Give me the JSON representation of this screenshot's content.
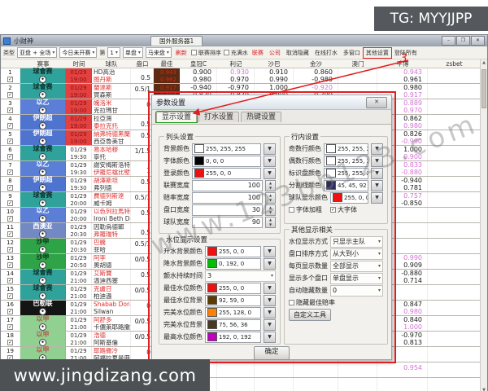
{
  "watermarks": {
    "tg_badge": "TG: MYYJJPP",
    "bottom_site": "www.jingdizang.com",
    "diagonal": "www.123bb123.com"
  },
  "window": {
    "title": "小财神",
    "server_tab": "国外服务器1",
    "min": "–",
    "max": "❐",
    "close": "✕"
  },
  "toolbar": {
    "items": [
      {
        "t": "label",
        "text": "类型"
      },
      {
        "t": "dd",
        "text": "亚盘 + 全场"
      },
      {
        "t": "dd",
        "text": "今日未开赛"
      },
      {
        "t": "label",
        "text": "第"
      },
      {
        "t": "dd",
        "text": "1"
      },
      {
        "t": "dd",
        "text": "单盘"
      },
      {
        "t": "dd",
        "text": "马来盘"
      },
      {
        "t": "red",
        "text": "刷新"
      },
      {
        "t": "check",
        "text": "联赛排序",
        "checked": false
      },
      {
        "t": "check",
        "text": "充满水",
        "checked": false
      },
      {
        "t": "red",
        "text": "联赛"
      },
      {
        "t": "red",
        "text": "公司"
      },
      {
        "t": "plain",
        "text": "取消隐藏"
      },
      {
        "t": "plain",
        "text": "在线打水"
      },
      {
        "t": "plain",
        "text": "多窗口"
      },
      {
        "t": "plain",
        "text": "其他设置",
        "hl": true
      },
      {
        "t": "plain",
        "text": "登陆所有"
      }
    ],
    "step_annotation": "3"
  },
  "table": {
    "headers": [
      "赛事",
      "时间",
      "球队",
      "盘口",
      "最佳",
      "皇冠C",
      "利记",
      "沙巴",
      "金沙",
      "澳门",
      "平博",
      "zsbet"
    ],
    "pink_prefix": "*",
    "rows": [
      {
        "n": "1",
        "lg": "球會赛",
        "d": "01/29",
        "tm": "19:00",
        "live": true,
        "t1": "HD高治",
        "t2": "图丹斯",
        "fav": 2,
        "h": "0.5",
        "best": [
          "0.943",
          "0.962"
        ],
        "hg": [
          "0.900",
          "0.980"
        ],
        "lj": [
          "*0.930",
          "0.970"
        ],
        "sb": [
          "0.910",
          "0.990"
        ],
        "js": [
          "0.860",
          "-0.980"
        ],
        "pb": [
          "*0.943",
          "0.961"
        ]
      },
      {
        "n": "2",
        "lg": "球會赛",
        "d": "01/29",
        "tm": "19:00",
        "live": true,
        "t1": "蘭達斯",
        "t2": "賀森斯",
        "fav": 1,
        "h": "0.5/1",
        "best": [
          "0.917",
          "0.817"
        ],
        "hg": [
          "-0.940",
          "0.820"
        ],
        "lj": [
          "-0.970",
          "0.870"
        ],
        "sb": [
          "1.000",
          "0.900"
        ],
        "js": [
          "*-0.920",
          "0.790"
        ],
        "pb": [
          "0.980",
          "*0.917"
        ]
      },
      {
        "n": "3",
        "lg": "以乙",
        "d": "01/29",
        "tm": "19:00",
        "live": true,
        "t1": "魄洛米",
        "t2": "克拉瑪甘",
        "fav": 1,
        "h": "0",
        "best": [
          "0.920",
          ""
        ],
        "pb": [
          "*0.889",
          "*0.970"
        ]
      },
      {
        "n": "4",
        "lg": "伊朗超",
        "d": "01/29",
        "tm": "19:00",
        "live": true,
        "t1": "拉亞灣",
        "t2": "泰拉克托",
        "fav": 2,
        "h": "0.5",
        "pb": [
          "0.862",
          "*0.980"
        ]
      },
      {
        "n": "5",
        "lg": "伊朗超",
        "d": "01/29",
        "tm": "19:00",
        "live": true,
        "t1": "納弗特德黑蘭",
        "t2": "西亞魯美甘",
        "fav": 1,
        "h": "0.5",
        "pb": [
          "0.826",
          "*-0.990"
        ]
      },
      {
        "n": "6",
        "lg": "球會赛",
        "d": "01/29",
        "tm": "19:30",
        "t1": "易本哈穆",
        "t2": "寧托",
        "fav": 1,
        "h": "1/1.5",
        "pb": [
          "1.000",
          "*0.900"
        ]
      },
      {
        "n": "7",
        "lg": "以乙",
        "d": "01/29",
        "tm": "19:30",
        "t1": "謝安梅斯洛特",
        "t2": "伊羅尼檔比壁",
        "fav": 2,
        "h": "1",
        "pb": [
          "*0.833",
          "*-0.880"
        ]
      },
      {
        "n": "8",
        "lg": "伊朗超",
        "d": "01/29",
        "tm": "19:30",
        "t1": "胡澤斯坦",
        "t2": "弗列德",
        "fav": 1,
        "h": "0.5",
        "pb": [
          "-0.940",
          "0.781"
        ]
      },
      {
        "n": "9",
        "lg": "球會赛",
        "d": "01/29",
        "tm": "20:00",
        "t1": "費德列斯達",
        "t2": "威卡姆",
        "fav": 1,
        "h": "0.5/1",
        "pb": [
          "*0.757",
          "-0.850"
        ]
      },
      {
        "n": "10",
        "lg": "以乙",
        "d": "01/29",
        "tm": "20:00",
        "t1": "以色列拉馬特",
        "t2": "Ironi Beth D-",
        "fav": 1,
        "h": "0.5"
      },
      {
        "n": "11",
        "lg": "西澳亚",
        "d": "01/29",
        "tm": "20:30",
        "t1": "因勒烏德鄲",
        "t2": "弗羅瑞特",
        "fav": 2,
        "h": "0.5"
      },
      {
        "n": "12",
        "lg": "沙甲",
        "d": "01/29",
        "tm": "20:30",
        "t1": "巴騰",
        "t2": "菲哈",
        "fav": 1,
        "h": "0.5/1"
      },
      {
        "n": "13",
        "lg": "沙甲",
        "d": "01/29",
        "tm": "20:50",
        "t1": "阿李",
        "t2": "奧胡德",
        "fav": 1,
        "h": "0/0.5",
        "pb": [
          "*0.990",
          "0.909"
        ]
      },
      {
        "n": "14",
        "lg": "球會赛",
        "d": "01/29",
        "tm": "21:00",
        "t1": "艾斯寶",
        "t2": "溫迪西塞",
        "fav": 1,
        "h": "0.5",
        "pb": [
          "-0.880",
          "0.714"
        ]
      },
      {
        "n": "15",
        "lg": "球會赛",
        "d": "01/29",
        "tm": "21:00",
        "t1": "克盧日",
        "t2": "柏迪遜",
        "fav": 1,
        "h": "0/0.5"
      },
      {
        "n": "16",
        "lg": "巴勒联",
        "d": "01/29",
        "tm": "21:00",
        "t1": "Shabab Dora",
        "t2": "Silwan",
        "fav": 1,
        "h": "0",
        "pb": [
          "0.847",
          "*0.980"
        ]
      },
      {
        "n": "17",
        "lg": "以甲",
        "d": "01/29",
        "tm": "21:00",
        "t1": "阿舒多",
        "t2": "卡儂萊耶路撒",
        "fav": 1,
        "h": "0/0.5",
        "pb": [
          "0.840",
          "*1.000"
        ]
      },
      {
        "n": "18",
        "lg": "以甲",
        "d": "01/29",
        "tm": "21:00",
        "t1": "浩德",
        "t2": "阿斯基倫",
        "fav": 1,
        "h": "0/0.5",
        "pb": [
          "-0.970",
          "0.813"
        ]
      },
      {
        "n": "19",
        "lg": "以甲",
        "d": "01/29",
        "tm": "21:00",
        "t1": "耶路撒冷",
        "t2": "阿福拉夏曼冊",
        "fav": 1,
        "h": "0"
      },
      {
        "n": "20",
        "lg": "以甲",
        "d": "01/29",
        "tm": "21:00",
        "t1": "納沙利夫",
        "t2": "哈羅隆",
        "fav": 1,
        "h": "0",
        "pb": [
          "*0.954",
          ""
        ]
      },
      {
        "n": "21",
        "lg": "以甲",
        "d": "01/29",
        "tm": "21:00",
        "t1": "慕沙二亞馬卡",
        "t2": "",
        "fav": 1,
        "h": "0/0.5"
      }
    ]
  },
  "dialog": {
    "title": "参数设置",
    "close": "✕",
    "ok": "确定",
    "tabs": [
      "显示设置",
      "打水设置",
      "热键设置"
    ],
    "active_tab": 0,
    "col_header": {
      "title": "列头设置",
      "rows": [
        {
          "k": "color",
          "label": "背景颜色",
          "swatch": "#ffffff",
          "value": "255, 255, 255"
        },
        {
          "k": "color",
          "label": "字体颜色",
          "swatch": "#000000",
          "value": "0, 0, 0"
        },
        {
          "k": "color",
          "label": "登录颜色",
          "swatch": "#ee1111",
          "value": "255, 0, 0"
        },
        {
          "k": "spin",
          "label": "联赛宽度",
          "value": "100"
        },
        {
          "k": "spin",
          "label": "赔率宽度",
          "value": "100"
        },
        {
          "k": "spin",
          "label": "盘口宽度",
          "value": "30"
        },
        {
          "k": "spin",
          "label": "球队宽度",
          "value": "90"
        }
      ]
    },
    "row_settings": {
      "title": "行内设置",
      "rows": [
        {
          "k": "color",
          "label": "奇数行颜色",
          "swatch": "#ffffff",
          "value": "255, 255, 255"
        },
        {
          "k": "color",
          "label": "偶数行颜色",
          "swatch": "#ffffff",
          "value": "255, 255, 255"
        },
        {
          "k": "color",
          "label": "标识盘颜色",
          "swatch": "#ffffff",
          "value": "255, 255, 255"
        },
        {
          "k": "color",
          "label": "分割线颜色",
          "swatch": "#2d2d5c",
          "value": "45, 45, 92"
        },
        {
          "k": "color",
          "label": "球队显示颜色",
          "swatch": "#ee1111",
          "value": "255, 0, 0"
        }
      ],
      "checkboxes": [
        {
          "label": "字体加粗",
          "checked": false
        },
        {
          "label": "大字体",
          "checked": true
        }
      ]
    },
    "water": {
      "title": "水位显示设置",
      "rows": [
        {
          "k": "color",
          "label": "升水背景颜色",
          "swatch": "#ee1111",
          "value": "255, 0, 0"
        },
        {
          "k": "color",
          "label": "降水背景颜色",
          "swatch": "#00c000",
          "value": "0, 192, 0"
        },
        {
          "k": "select",
          "label": "颤水持续时间",
          "value": "3"
        },
        {
          "k": "color",
          "label": "最佳水位颜色",
          "swatch": "#ee1111",
          "value": "255, 0, 0"
        },
        {
          "k": "color",
          "label": "最佳水位背景",
          "swatch": "#5c3b00",
          "value": "92, 59, 0"
        },
        {
          "k": "color",
          "label": "完美水位颜色",
          "swatch": "#ff8000",
          "value": "255, 128, 0"
        },
        {
          "k": "color",
          "label": "完美水位背景",
          "swatch": "#4b3824",
          "value": "75, 56, 36"
        },
        {
          "k": "color",
          "label": "最高水位颜色",
          "swatch": "#c000c0",
          "value": "192, 0, 192"
        }
      ]
    },
    "other": {
      "title": "其他显示相关",
      "rows": [
        {
          "k": "select",
          "label": "水位显示方式",
          "value": "只显示主队"
        },
        {
          "k": "select",
          "label": "盘口排序方式",
          "value": "从大到小"
        },
        {
          "k": "select",
          "label": "每页显示数量",
          "value": "全部显示"
        },
        {
          "k": "select",
          "label": "显示多个盘口",
          "value": "单盘显示"
        },
        {
          "k": "select",
          "label": "自动隐藏数量",
          "value": "0"
        }
      ],
      "checkbox": {
        "label": "隐藏最佳赔率",
        "checked": false
      },
      "button": "自定义工具"
    }
  },
  "colors": {
    "pink": "#d66fd6",
    "team_red": "#e03030",
    "live_bg": "#e34040",
    "live_fg": "#8c1212",
    "best_bg": "#5d2a12",
    "best_fg": "#cf2c1c",
    "annotation_red": "#e02020",
    "annotation_green": "#1a9e1a",
    "leagues": {
      "球會赛": {
        "bg": "#2fa39b",
        "fg": "#10312e"
      },
      "以乙": {
        "bg": "#5b7fd6",
        "fg": "#ffffff"
      },
      "伊朗超": {
        "bg": "#4f74cf",
        "fg": "#ffffff"
      },
      "西澳亚": {
        "bg": "#7289c4",
        "fg": "#ffffff"
      },
      "沙甲": {
        "bg": "#2fa348",
        "fg": "#0c3317"
      },
      "以甲": {
        "bg": "#90d090",
        "fg": "#b35a4a"
      },
      "巴勒联": {
        "bg": "#141414",
        "fg": "#ffffff"
      }
    }
  }
}
